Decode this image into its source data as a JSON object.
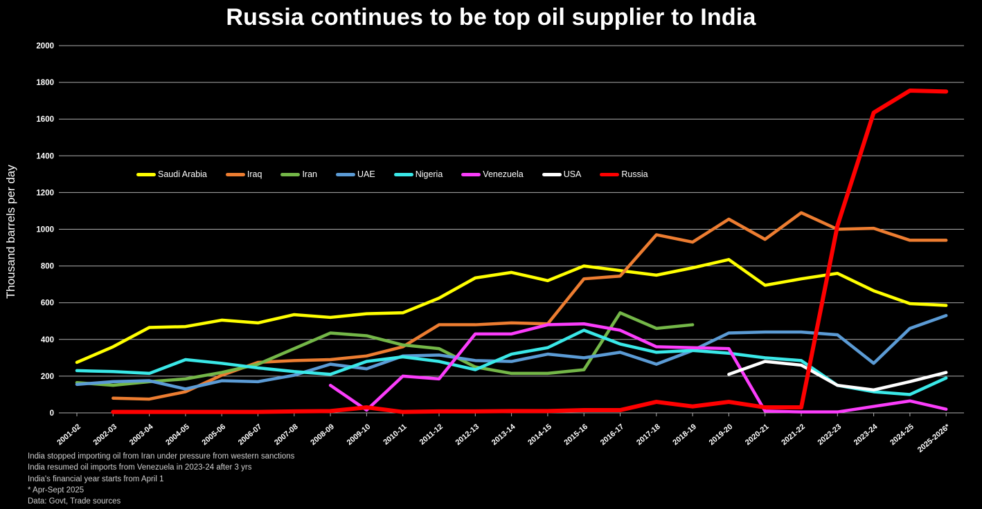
{
  "title": "Russia continues to be top oil supplier to India",
  "y_axis_label": "Thousand barrels per day",
  "footnotes": [
    "India stopped importing oil from Iran under pressure from western sanctions",
    "India resumed oil imports from Venezuela in 2023-24 after 3 yrs",
    "India's financial year starts from April 1",
    "* Apr-Sept 2025",
    "Data: Govt, Trade sources"
  ],
  "chart_data": {
    "type": "line",
    "title": "Russia continues to be top oil supplier to India",
    "xlabel": "",
    "ylabel": "Thousand barrels per day",
    "ylim": [
      0,
      2000
    ],
    "ytick_step": 200,
    "grid": true,
    "legend_position": "top-center",
    "background": "#000000",
    "gridline_color": "#b0b0b0",
    "text_color": "#ffffff",
    "categories": [
      "2001-02",
      "2002-03",
      "2003-04",
      "2004-05",
      "2005-06",
      "2006-07",
      "2007-08",
      "2008-09",
      "2009-10",
      "2010-11",
      "2011-12",
      "2012-13",
      "2013-14",
      "2014-15",
      "2015-16",
      "2016-17",
      "2017-18",
      "2018-19",
      "2019-20",
      "2020-21",
      "2021-22",
      "2022-23",
      "2023-24",
      "2024-25",
      "2025-2026*"
    ],
    "series": [
      {
        "name": "Saudi Arabia",
        "color": "#ffff00",
        "values": [
          275,
          360,
          465,
          470,
          505,
          490,
          535,
          520,
          540,
          545,
          625,
          735,
          765,
          720,
          800,
          775,
          750,
          790,
          835,
          695,
          730,
          760,
          665,
          595,
          585
        ]
      },
      {
        "name": "Iraq",
        "color": "#ed7d31",
        "values": [
          null,
          80,
          75,
          115,
          205,
          275,
          285,
          290,
          310,
          360,
          480,
          480,
          490,
          485,
          730,
          745,
          970,
          930,
          1055,
          945,
          1090,
          1000,
          1005,
          940,
          940
        ]
      },
      {
        "name": "Iran",
        "color": "#74b748",
        "values": [
          165,
          150,
          170,
          185,
          220,
          265,
          350,
          435,
          420,
          370,
          350,
          250,
          215,
          215,
          235,
          545,
          460,
          480,
          null,
          null,
          null,
          null,
          null,
          null,
          null
        ]
      },
      {
        "name": "UAE",
        "color": "#5b9bd5",
        "values": [
          155,
          170,
          175,
          130,
          175,
          170,
          205,
          265,
          240,
          310,
          315,
          285,
          280,
          320,
          300,
          330,
          265,
          340,
          435,
          440,
          440,
          425,
          270,
          460,
          530
        ]
      },
      {
        "name": "Nigeria",
        "color": "#3ae8e8",
        "values": [
          230,
          225,
          215,
          290,
          270,
          245,
          225,
          210,
          280,
          305,
          280,
          235,
          320,
          355,
          450,
          375,
          330,
          340,
          325,
          300,
          285,
          150,
          115,
          100,
          190
        ]
      },
      {
        "name": "Venezuela",
        "color": "#fb3dfb",
        "values": [
          null,
          null,
          null,
          null,
          null,
          null,
          null,
          150,
          15,
          200,
          185,
          430,
          430,
          480,
          485,
          450,
          360,
          355,
          350,
          10,
          5,
          5,
          35,
          65,
          20
        ]
      },
      {
        "name": "USA",
        "color": "#ffffff",
        "values": [
          null,
          null,
          null,
          null,
          null,
          null,
          null,
          null,
          null,
          null,
          null,
          null,
          null,
          null,
          null,
          null,
          null,
          null,
          210,
          280,
          260,
          150,
          125,
          170,
          220
        ]
      },
      {
        "name": "Russia",
        "color": "#ff0000",
        "values": [
          null,
          5,
          5,
          5,
          5,
          5,
          8,
          10,
          30,
          5,
          8,
          8,
          10,
          10,
          15,
          15,
          60,
          35,
          60,
          30,
          30,
          1020,
          1635,
          1755,
          1750
        ]
      }
    ]
  }
}
